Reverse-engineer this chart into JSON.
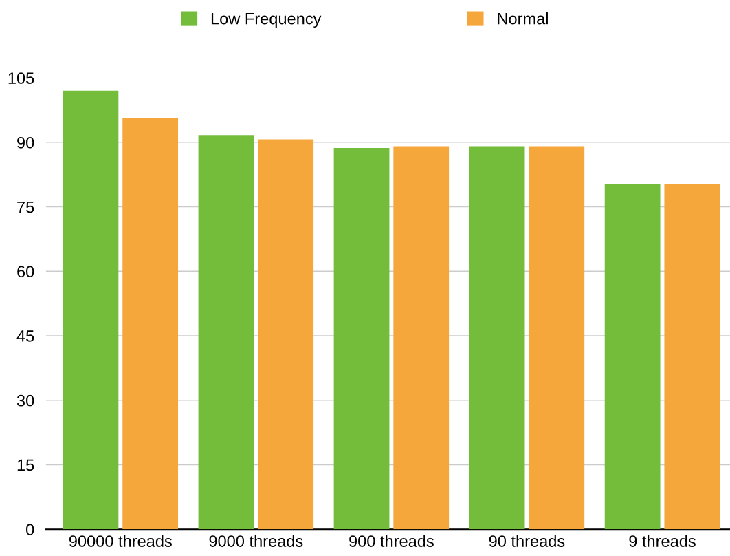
{
  "chart_data": {
    "type": "bar",
    "categories": [
      "90000 threads",
      "9000 threads",
      "900 threads",
      "90 threads",
      "9 threads"
    ],
    "series": [
      {
        "name": "Low Frequency",
        "color": "#74bd3b",
        "values": [
          102,
          91.7,
          88.7,
          89.1,
          80.2
        ]
      },
      {
        "name": "Normal",
        "color": "#f6a73c",
        "values": [
          95.6,
          90.7,
          89.1,
          89.1,
          80.2
        ]
      }
    ],
    "ylim": [
      0,
      105
    ],
    "yticks": [
      0,
      15,
      30,
      45,
      60,
      75,
      90,
      105
    ],
    "grid": "y",
    "legend": "top"
  }
}
